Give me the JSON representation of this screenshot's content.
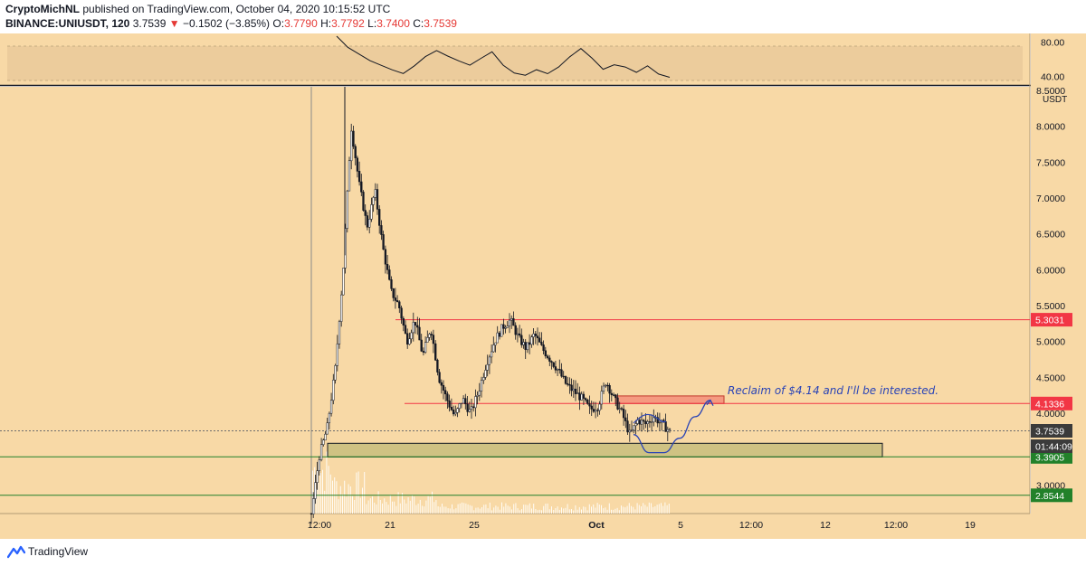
{
  "header": {
    "author": "CryptoMichNL",
    "published": "published on TradingView.com, October 04, 2020 10:15:52 UTC",
    "symbol": "BINANCE:UNIUSDT, 120",
    "last": "3.7539",
    "change": "−0.1502 (−3.85%)",
    "o_label": "O:",
    "o": "3.7790",
    "h_label": "H:",
    "h": "3.7792",
    "l_label": "L:",
    "l": "3.7400",
    "c_label": "C:",
    "c": "3.7539"
  },
  "footer": {
    "brand": "TradingView"
  },
  "colors": {
    "background": "#f8d9a6",
    "red_level": "#f23645",
    "green_level": "#22812a",
    "blue_annotation": "#2a44b6",
    "candle": "#131722"
  },
  "chart_data": {
    "type": "candlestick",
    "title": "",
    "currency_label": "USDT",
    "x_ticks": [
      "12:00",
      "21",
      "25",
      "Oct",
      "5",
      "12:00",
      "12",
      "12:00",
      "19"
    ],
    "y_ticks": [
      "8.5000",
      "8.0000",
      "7.5000",
      "7.0000",
      "6.5000",
      "6.0000",
      "5.5000",
      "5.0000",
      "4.5000",
      "4.0000",
      "3.0000"
    ],
    "ylim": [
      2.6,
      8.55
    ],
    "price_path": [
      [
        0,
        2.6
      ],
      [
        1,
        3.4
      ],
      [
        2,
        3.8
      ],
      [
        3,
        4.6
      ],
      [
        4,
        6.0
      ],
      [
        5,
        8.0
      ],
      [
        6,
        7.2
      ],
      [
        7,
        6.6
      ],
      [
        8,
        7.1
      ],
      [
        9,
        6.3
      ],
      [
        10,
        5.7
      ],
      [
        11,
        5.5
      ],
      [
        12,
        5.0
      ],
      [
        13,
        5.3
      ],
      [
        14,
        4.8
      ],
      [
        15,
        5.2
      ],
      [
        16,
        4.5
      ],
      [
        17,
        4.2
      ],
      [
        18,
        3.95
      ],
      [
        19,
        4.2
      ],
      [
        20,
        4.0
      ],
      [
        21,
        4.3
      ],
      [
        22,
        4.7
      ],
      [
        23,
        5.0
      ],
      [
        24,
        5.2
      ],
      [
        25,
        5.3
      ],
      [
        26,
        5.05
      ],
      [
        27,
        4.9
      ],
      [
        28,
        5.1
      ],
      [
        29,
        4.9
      ],
      [
        30,
        4.75
      ],
      [
        31,
        4.6
      ],
      [
        32,
        4.4
      ],
      [
        33,
        4.3
      ],
      [
        34,
        4.2
      ],
      [
        35,
        4.05
      ],
      [
        36,
        4.1
      ],
      [
        37,
        4.45
      ],
      [
        38,
        4.2
      ],
      [
        39,
        4.0
      ],
      [
        40,
        3.7
      ],
      [
        41,
        3.9
      ],
      [
        42,
        3.85
      ],
      [
        43,
        3.95
      ],
      [
        44,
        3.85
      ],
      [
        45,
        3.75
      ]
    ],
    "oscillator": {
      "ticks": [
        "80.00",
        "40.00"
      ],
      "band": [
        35,
        75
      ],
      "values": [
        88,
        74,
        66,
        58,
        52,
        46,
        44,
        52,
        62,
        70,
        64,
        58,
        52,
        60,
        68,
        52,
        44,
        40,
        46,
        42,
        50,
        64,
        72,
        60,
        48,
        54,
        50,
        46,
        52,
        44,
        40
      ]
    },
    "levels": [
      {
        "label": "5.3031",
        "value": 5.3031,
        "color": "red"
      },
      {
        "label": "4.1336",
        "value": 4.1336,
        "color": "red"
      },
      {
        "label": "3.3905",
        "value": 3.3905,
        "color": "green"
      },
      {
        "label": "2.8544",
        "value": 2.8544,
        "color": "green"
      }
    ],
    "current_price": {
      "label": "3.7539",
      "value": 3.7539,
      "countdown": "01:44:09"
    },
    "zones": [
      {
        "name": "resistance",
        "from": 4.1336,
        "to": 4.24
      },
      {
        "name": "support",
        "from": 3.39,
        "to": 3.58
      }
    ],
    "projection": [
      [
        45,
        3.7
      ],
      [
        46,
        3.45
      ],
      [
        47,
        3.45
      ],
      [
        48,
        3.65
      ],
      [
        49,
        3.95
      ],
      [
        50,
        4.18
      ]
    ],
    "annotation": "Reclaim of $4.14 and I'll be interested."
  }
}
